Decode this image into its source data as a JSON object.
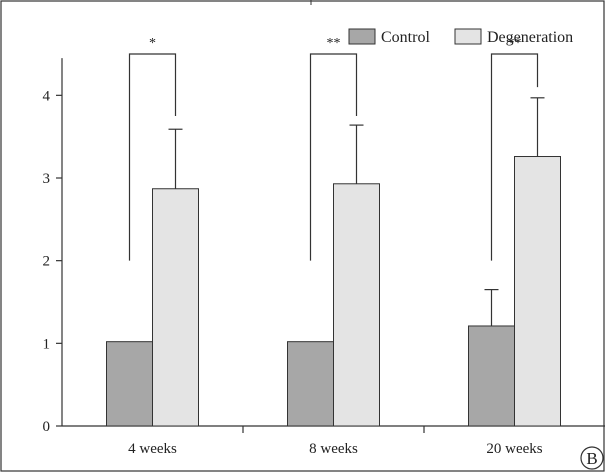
{
  "panel_label": "B",
  "colors": {
    "control": "#a7a7a7",
    "degeneration": "#e4e4e4",
    "stroke": "#333333"
  },
  "chart_data": {
    "type": "bar",
    "categories": [
      "4 weeks",
      "8 weeks",
      "20 weeks"
    ],
    "series": [
      {
        "name": "Control",
        "values": [
          1.02,
          1.02,
          1.21
        ],
        "error": [
          null,
          null,
          0.44
        ]
      },
      {
        "name": "Degeneration",
        "values": [
          2.87,
          2.93,
          3.26
        ],
        "error": [
          0.72,
          0.71,
          0.71
        ]
      }
    ],
    "ylim": [
      0,
      4.5
    ],
    "yticks": [
      0,
      1,
      2,
      3,
      4
    ],
    "ytick_labels": [
      "0",
      "1",
      "2",
      "3",
      "4"
    ],
    "legend_position": "top-right",
    "significance": [
      {
        "category": "4 weeks",
        "label": "*",
        "left_y": 2.0,
        "top_y": 4.5,
        "right_y": 3.75
      },
      {
        "category": "8 weeks",
        "label": "**",
        "left_y": 2.0,
        "top_y": 4.5,
        "right_y": 3.75
      },
      {
        "category": "20 weeks",
        "label": "**",
        "left_y": 2.0,
        "top_y": 4.5,
        "right_y": 4.1
      }
    ]
  }
}
